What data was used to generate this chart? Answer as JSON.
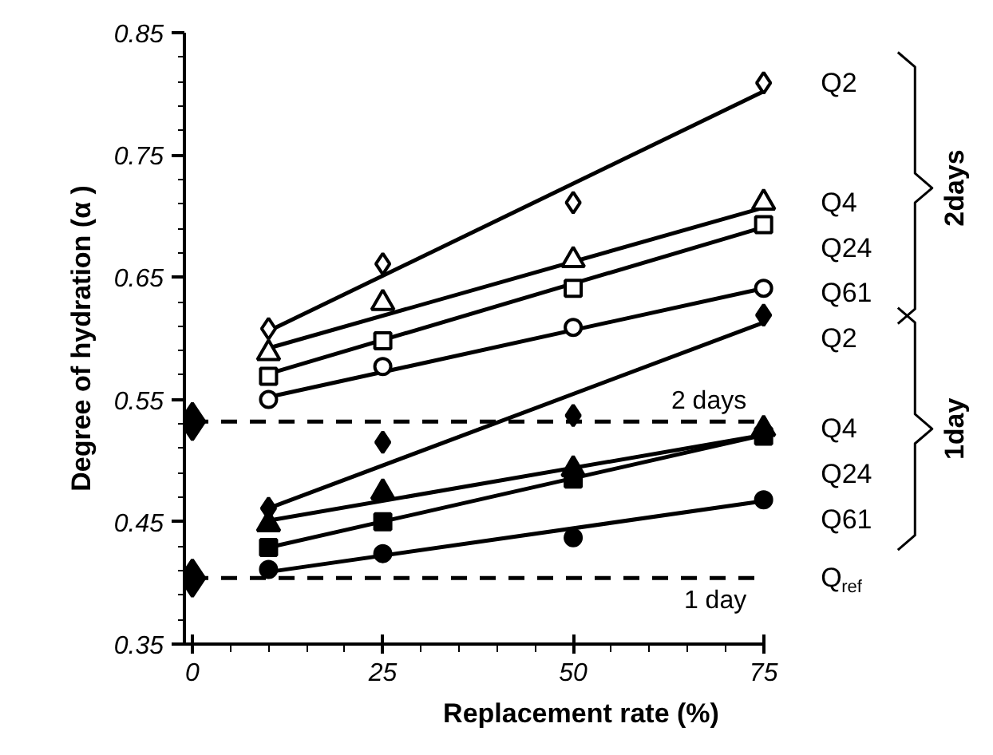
{
  "chart_data": {
    "type": "scatter",
    "xlabel": "Replacement rate (%)",
    "ylabel": "Degree of hydration (α )",
    "x": [
      10,
      25,
      50,
      75
    ],
    "xlim": [
      0,
      75
    ],
    "xticks": [
      0,
      25,
      50,
      75
    ],
    "ylim": [
      0.35,
      0.85
    ],
    "yticks": [
      0.35,
      0.45,
      0.55,
      0.65,
      0.75,
      0.85
    ],
    "grid": false,
    "series": [
      {
        "name": "Q2",
        "marker": "diamond_open",
        "color": "#000000",
        "values": [
          0.608,
          0.661,
          0.711,
          0.809
        ]
      },
      {
        "name": "Q4",
        "marker": "triangle_open",
        "color": "#000000",
        "values": [
          0.588,
          0.629,
          0.664,
          0.711
        ]
      },
      {
        "name": "Q24",
        "marker": "square_open",
        "color": "#000000",
        "values": [
          0.569,
          0.598,
          0.641,
          0.693
        ]
      },
      {
        "name": "Q61",
        "marker": "circle_open",
        "color": "#000000",
        "values": [
          0.55,
          0.577,
          0.609,
          0.641
        ]
      },
      {
        "name": "Q2",
        "marker": "diamond",
        "color": "#000000",
        "values": [
          0.461,
          0.515,
          0.537,
          0.619
        ]
      },
      {
        "name": "Q4",
        "marker": "triangle",
        "color": "#000000",
        "values": [
          0.448,
          0.474,
          0.493,
          0.526
        ]
      },
      {
        "name": "Q24",
        "marker": "square",
        "color": "#000000",
        "values": [
          0.429,
          0.45,
          0.485,
          0.52
        ]
      },
      {
        "name": "Q61",
        "marker": "circle",
        "color": "#000000",
        "values": [
          0.411,
          0.424,
          0.437,
          0.468
        ]
      },
      {
        "name": "Q$_{ref}$",
        "marker": "diamond",
        "color": "#000000",
        "x": [
          0,
          0
        ],
        "values": [
          0.532,
          0.404
        ]
      },
      {
        "type": "line",
        "color": "#000000",
        "x": [
          10,
          75
        ],
        "values": [
          0.606,
          0.802
        ]
      },
      {
        "type": "line",
        "color": "#000000",
        "x": [
          10,
          75
        ],
        "values": [
          0.592,
          0.707
        ]
      },
      {
        "type": "line",
        "color": "#000000",
        "x": [
          10,
          75
        ],
        "values": [
          0.571,
          0.691
        ]
      },
      {
        "type": "line",
        "color": "#000000",
        "x": [
          10,
          75
        ],
        "values": [
          0.552,
          0.641
        ]
      },
      {
        "type": "line",
        "color": "#000000",
        "x": [
          10,
          75
        ],
        "values": [
          0.461,
          0.613
        ]
      },
      {
        "type": "line",
        "color": "#000000",
        "x": [
          10,
          75
        ],
        "values": [
          0.451,
          0.521
        ]
      },
      {
        "type": "line",
        "color": "#000000",
        "x": [
          10,
          75
        ],
        "values": [
          0.429,
          0.521
        ]
      },
      {
        "type": "line",
        "color": "#000000",
        "x": [
          10,
          75
        ],
        "values": [
          0.409,
          0.467
        ]
      }
    ],
    "ref_lines": [
      {
        "axis": "y",
        "value": 0.532,
        "label": "2 days",
        "line_style": "dashed",
        "color": "#000000"
      },
      {
        "axis": "y",
        "value": 0.404,
        "label": "1 day",
        "line_style": "dashed",
        "color": "#000000"
      }
    ],
    "annotations": [
      "2days",
      "1day"
    ]
  }
}
